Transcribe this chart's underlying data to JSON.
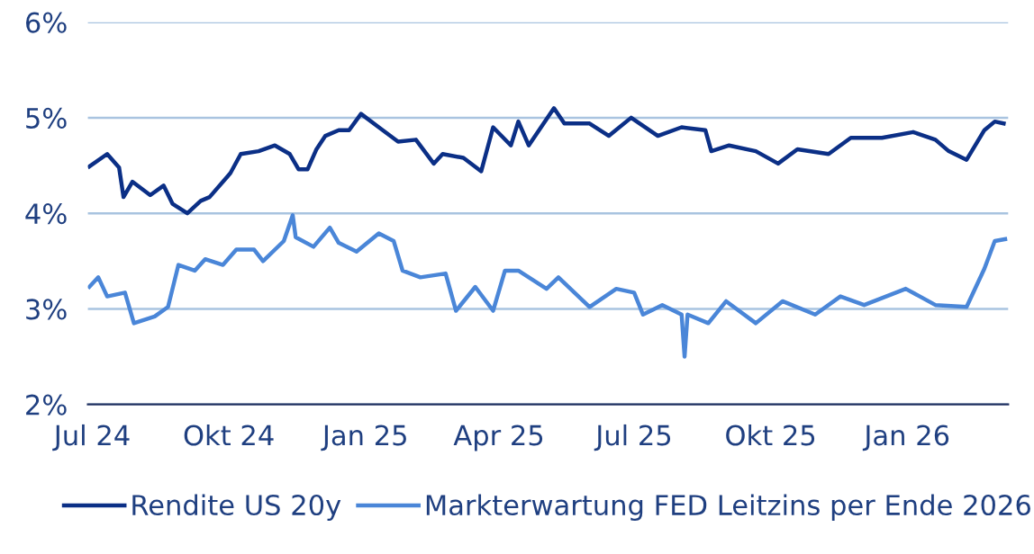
{
  "chart_data": {
    "type": "line",
    "xlim": [
      "2024-06-28",
      "2026-03-10"
    ],
    "ylim": [
      2,
      6
    ],
    "yticks": [
      {
        "value": 2,
        "label": "2%"
      },
      {
        "value": 3,
        "label": "3%"
      },
      {
        "value": 4,
        "label": "4%"
      },
      {
        "value": 5,
        "label": "5%"
      },
      {
        "value": 6,
        "label": "6%"
      }
    ],
    "xticks": [
      {
        "value": "2024-07-01",
        "label": "Jul 24"
      },
      {
        "value": "2024-10-01",
        "label": "Okt 24"
      },
      {
        "value": "2025-01-01",
        "label": "Jan 25"
      },
      {
        "value": "2025-04-01",
        "label": "Apr 25"
      },
      {
        "value": "2025-07-01",
        "label": "Jul 25"
      },
      {
        "value": "2025-10-01",
        "label": "Okt 25"
      },
      {
        "value": "2026-01-01",
        "label": "Jan 26"
      }
    ],
    "grid": "y",
    "legend": "bottom",
    "marker": "none",
    "line_style": "solid",
    "series": [
      {
        "name": "Rendite US 20y",
        "color": "#0b2f86",
        "x": [
          "2024-06-29",
          "2024-07-11",
          "2024-07-19",
          "2024-07-22",
          "2024-07-28",
          "2024-08-09",
          "2024-08-18",
          "2024-08-24",
          "2024-09-03",
          "2024-09-12",
          "2024-09-18",
          "2024-10-02",
          "2024-10-09",
          "2024-10-21",
          "2024-11-01",
          "2024-11-11",
          "2024-11-17",
          "2024-11-23",
          "2024-11-29",
          "2024-12-05",
          "2024-12-14",
          "2024-12-21",
          "2024-12-29",
          "2025-01-10",
          "2025-01-23",
          "2025-02-04",
          "2025-02-16",
          "2025-02-22",
          "2025-03-08",
          "2025-03-20",
          "2025-03-28",
          "2025-04-09",
          "2025-04-14",
          "2025-04-21",
          "2025-05-08",
          "2025-05-15",
          "2025-06-01",
          "2025-06-14",
          "2025-06-29",
          "2025-07-17",
          "2025-08-02",
          "2025-08-18",
          "2025-08-22",
          "2025-09-03",
          "2025-09-21",
          "2025-10-06",
          "2025-10-19",
          "2025-11-09",
          "2025-11-24",
          "2025-12-15",
          "2026-01-05",
          "2026-01-20",
          "2026-01-29",
          "2026-02-10",
          "2026-02-22",
          "2026-03-01",
          "2026-03-07"
        ],
        "values": [
          4.49,
          4.62,
          4.48,
          4.17,
          4.33,
          4.19,
          4.29,
          4.1,
          4.0,
          4.13,
          4.17,
          4.42,
          4.62,
          4.65,
          4.71,
          4.62,
          4.46,
          4.46,
          4.67,
          4.81,
          4.87,
          4.87,
          5.04,
          4.9,
          4.75,
          4.77,
          4.52,
          4.62,
          4.58,
          4.44,
          4.9,
          4.71,
          4.96,
          4.71,
          5.1,
          4.94,
          4.94,
          4.81,
          5.0,
          4.81,
          4.9,
          4.87,
          4.65,
          4.71,
          4.65,
          4.52,
          4.67,
          4.62,
          4.79,
          4.79,
          4.85,
          4.77,
          4.65,
          4.56,
          4.87,
          4.96,
          4.94
        ]
      },
      {
        "name": "Markterwartung FED Leitzins per Ende 2026",
        "color": "#4a86d8",
        "x": [
          "2024-06-29",
          "2024-07-05",
          "2024-07-11",
          "2024-07-23",
          "2024-07-29",
          "2024-08-12",
          "2024-08-21",
          "2024-08-28",
          "2024-09-08",
          "2024-09-15",
          "2024-09-27",
          "2024-10-06",
          "2024-10-18",
          "2024-10-24",
          "2024-11-07",
          "2024-11-13",
          "2024-11-15",
          "2024-11-27",
          "2024-12-08",
          "2024-12-14",
          "2024-12-26",
          "2025-01-10",
          "2025-01-20",
          "2025-01-26",
          "2025-02-07",
          "2025-02-24",
          "2025-03-03",
          "2025-03-16",
          "2025-03-28",
          "2025-04-05",
          "2025-04-14",
          "2025-05-03",
          "2025-05-11",
          "2025-06-01",
          "2025-06-19",
          "2025-07-01",
          "2025-07-07",
          "2025-07-20",
          "2025-08-02",
          "2025-08-04",
          "2025-08-06",
          "2025-08-20",
          "2025-09-01",
          "2025-09-21",
          "2025-10-09",
          "2025-10-31",
          "2025-11-17",
          "2025-12-03",
          "2025-12-31",
          "2026-01-20",
          "2026-02-10",
          "2026-02-22",
          "2026-03-01",
          "2026-03-08"
        ],
        "values": [
          3.23,
          3.33,
          3.13,
          3.17,
          2.85,
          2.92,
          3.02,
          3.46,
          3.4,
          3.52,
          3.46,
          3.62,
          3.62,
          3.5,
          3.71,
          3.98,
          3.75,
          3.65,
          3.85,
          3.69,
          3.6,
          3.79,
          3.71,
          3.4,
          3.33,
          3.37,
          2.98,
          3.23,
          2.98,
          3.4,
          3.4,
          3.21,
          3.33,
          3.02,
          3.21,
          3.17,
          2.94,
          3.04,
          2.94,
          2.5,
          2.94,
          2.85,
          3.08,
          2.85,
          3.08,
          2.94,
          3.13,
          3.04,
          3.21,
          3.04,
          3.02,
          3.42,
          3.71,
          3.73
        ]
      }
    ]
  }
}
